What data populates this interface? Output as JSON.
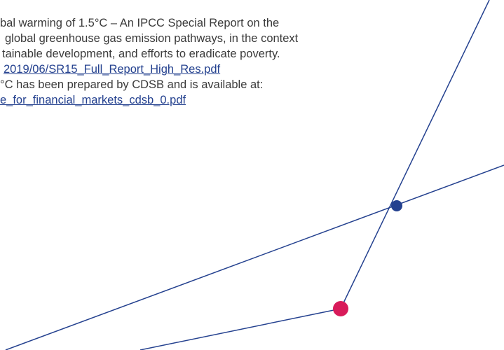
{
  "footnotes": {
    "lines": [
      "bal warming of 1.5°C – An IPCC Special Report on the",
      "global greenhouse gas emission pathways, in the context",
      "tainable development, and efforts to eradicate poverty.",
      "2019/06/SR15_Full_Report_High_Res.pdf",
      "°C has been prepared by CDSB and is available at:",
      "e_for_financial_markets_cdsb_0.pdf"
    ]
  }
}
